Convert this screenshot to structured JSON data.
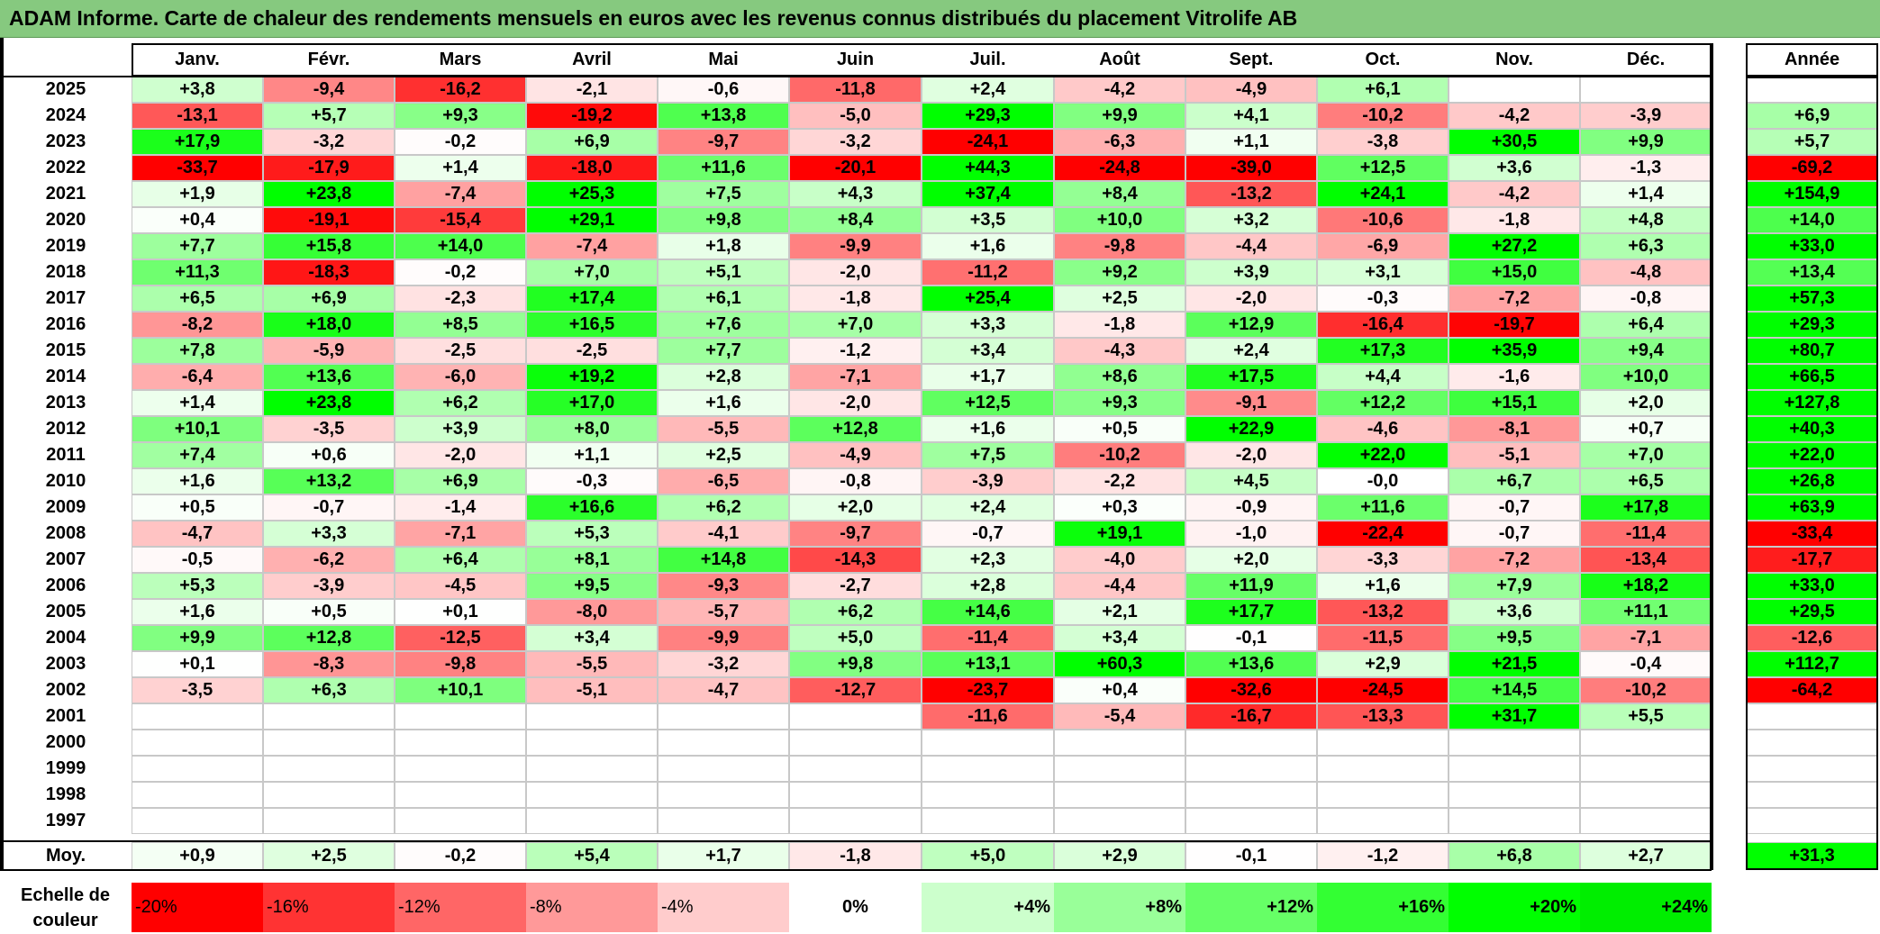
{
  "title": "ADAM Informe. Carte de chaleur des rendements mensuels en euros avec les revenus connus distribués du placement Vitrolife AB",
  "chart_data": {
    "type": "heatmap",
    "columns": [
      "Janv.",
      "Févr.",
      "Mars",
      "Avril",
      "Mai",
      "Juin",
      "Juil.",
      "Août",
      "Sept.",
      "Oct.",
      "Nov.",
      "Déc."
    ],
    "year_column": "Année",
    "rows": [
      {
        "label": "2025",
        "values": [
          3.8,
          -9.4,
          -16.2,
          -2.1,
          -0.6,
          -11.8,
          2.4,
          -4.2,
          -4.9,
          6.1,
          null,
          null
        ],
        "year": null
      },
      {
        "label": "2024",
        "values": [
          -13.1,
          5.7,
          9.3,
          -19.2,
          13.8,
          -5.0,
          29.3,
          9.9,
          4.1,
          -10.2,
          -4.2,
          -3.9
        ],
        "year": 6.9
      },
      {
        "label": "2023",
        "values": [
          17.9,
          -3.2,
          -0.2,
          6.9,
          -9.7,
          -3.2,
          -24.1,
          -6.3,
          1.1,
          -3.8,
          30.5,
          9.9
        ],
        "year": 5.7
      },
      {
        "label": "2022",
        "values": [
          -33.7,
          -17.9,
          1.4,
          -18.0,
          11.6,
          -20.1,
          44.3,
          -24.8,
          -39.0,
          12.5,
          3.6,
          -1.3
        ],
        "year": -69.2
      },
      {
        "label": "2021",
        "values": [
          1.9,
          23.8,
          -7.4,
          25.3,
          7.5,
          4.3,
          37.4,
          8.4,
          -13.2,
          24.1,
          -4.2,
          1.4
        ],
        "year": 154.9
      },
      {
        "label": "2020",
        "values": [
          0.4,
          -19.1,
          -15.4,
          29.1,
          9.8,
          8.4,
          3.5,
          10.0,
          3.2,
          -10.6,
          -1.8,
          4.8
        ],
        "year": 14.0
      },
      {
        "label": "2019",
        "values": [
          7.7,
          15.8,
          14.0,
          -7.4,
          1.8,
          -9.9,
          1.6,
          -9.8,
          -4.4,
          -6.9,
          27.2,
          6.3
        ],
        "year": 33.0
      },
      {
        "label": "2018",
        "values": [
          11.3,
          -18.3,
          -0.2,
          7.0,
          5.1,
          -2.0,
          -11.2,
          9.2,
          3.9,
          3.1,
          15.0,
          -4.8
        ],
        "year": 13.4
      },
      {
        "label": "2017",
        "values": [
          6.5,
          6.9,
          -2.3,
          17.4,
          6.1,
          -1.8,
          25.4,
          2.5,
          -2.0,
          -0.3,
          -7.2,
          -0.8
        ],
        "year": 57.3
      },
      {
        "label": "2016",
        "values": [
          -8.2,
          18.0,
          8.5,
          16.5,
          7.6,
          7.0,
          3.3,
          -1.8,
          12.9,
          -16.4,
          -19.7,
          6.4
        ],
        "year": 29.3
      },
      {
        "label": "2015",
        "values": [
          7.8,
          -5.9,
          -2.5,
          -2.5,
          7.7,
          -1.2,
          3.4,
          -4.3,
          2.4,
          17.3,
          35.9,
          9.4
        ],
        "year": 80.7
      },
      {
        "label": "2014",
        "values": [
          -6.4,
          13.6,
          -6.0,
          19.2,
          2.8,
          -7.1,
          1.7,
          8.6,
          17.5,
          4.4,
          -1.6,
          10.0
        ],
        "year": 66.5
      },
      {
        "label": "2013",
        "values": [
          1.4,
          23.8,
          6.2,
          17.0,
          1.6,
          -2.0,
          12.5,
          9.3,
          -9.1,
          12.2,
          15.1,
          2.0
        ],
        "year": 127.8
      },
      {
        "label": "2012",
        "values": [
          10.1,
          -3.5,
          3.9,
          8.0,
          -5.5,
          12.8,
          1.6,
          0.5,
          22.9,
          -4.6,
          -8.1,
          0.7
        ],
        "year": 40.3
      },
      {
        "label": "2011",
        "values": [
          7.4,
          0.6,
          -2.0,
          1.1,
          2.5,
          -4.9,
          7.5,
          -10.2,
          -2.0,
          22.0,
          -5.1,
          7.0
        ],
        "year": 22.0
      },
      {
        "label": "2010",
        "values": [
          1.6,
          13.2,
          6.9,
          -0.3,
          -6.5,
          -0.8,
          -3.9,
          -2.2,
          4.5,
          -0.0,
          6.7,
          6.5
        ],
        "year": 26.8
      },
      {
        "label": "2009",
        "values": [
          0.5,
          -0.7,
          -1.4,
          16.6,
          6.2,
          2.0,
          2.4,
          0.3,
          -0.9,
          11.6,
          -0.7,
          17.8
        ],
        "year": 63.9
      },
      {
        "label": "2008",
        "values": [
          -4.7,
          3.3,
          -7.1,
          5.3,
          -4.1,
          -9.7,
          -0.7,
          19.1,
          -1.0,
          -22.4,
          -0.7,
          -11.4
        ],
        "year": -33.4
      },
      {
        "label": "2007",
        "values": [
          -0.5,
          -6.2,
          6.4,
          8.1,
          14.8,
          -14.3,
          2.3,
          -4.0,
          2.0,
          -3.3,
          -7.2,
          -13.4
        ],
        "year": -17.7
      },
      {
        "label": "2006",
        "values": [
          5.3,
          -3.9,
          -4.5,
          9.5,
          -9.3,
          -2.7,
          2.8,
          -4.4,
          11.9,
          1.6,
          7.9,
          18.2
        ],
        "year": 33.0
      },
      {
        "label": "2005",
        "values": [
          1.6,
          0.5,
          0.1,
          -8.0,
          -5.7,
          6.2,
          14.6,
          2.1,
          17.7,
          -13.2,
          3.6,
          11.1
        ],
        "year": 29.5
      },
      {
        "label": "2004",
        "values": [
          9.9,
          12.8,
          -12.5,
          3.4,
          -9.9,
          5.0,
          -11.4,
          3.4,
          -0.1,
          -11.5,
          9.5,
          -7.1
        ],
        "year": -12.6
      },
      {
        "label": "2003",
        "values": [
          0.1,
          -8.3,
          -9.8,
          -5.5,
          -3.2,
          9.8,
          13.1,
          60.3,
          13.6,
          2.9,
          21.5,
          -0.4
        ],
        "year": 112.7
      },
      {
        "label": "2002",
        "values": [
          -3.5,
          6.3,
          10.1,
          -5.1,
          -4.7,
          -12.7,
          -23.7,
          0.4,
          -32.6,
          -24.5,
          14.5,
          -10.2
        ],
        "year": -64.2
      },
      {
        "label": "2001",
        "values": [
          null,
          null,
          null,
          null,
          null,
          null,
          -11.6,
          -5.4,
          -16.7,
          -13.3,
          31.7,
          5.5
        ],
        "year": null
      },
      {
        "label": "2000",
        "values": [
          null,
          null,
          null,
          null,
          null,
          null,
          null,
          null,
          null,
          null,
          null,
          null
        ],
        "year": null
      },
      {
        "label": "1999",
        "values": [
          null,
          null,
          null,
          null,
          null,
          null,
          null,
          null,
          null,
          null,
          null,
          null
        ],
        "year": null
      },
      {
        "label": "1998",
        "values": [
          null,
          null,
          null,
          null,
          null,
          null,
          null,
          null,
          null,
          null,
          null,
          null
        ],
        "year": null
      },
      {
        "label": "1997",
        "values": [
          null,
          null,
          null,
          null,
          null,
          null,
          null,
          null,
          null,
          null,
          null,
          null
        ],
        "year": null
      }
    ],
    "average": {
      "label": "Moy.",
      "values": [
        0.9,
        2.5,
        -0.2,
        5.4,
        1.7,
        -1.8,
        5.0,
        2.9,
        -0.1,
        -1.2,
        6.8,
        2.7
      ],
      "year": 31.3
    },
    "scale": {
      "label_line1": "Echelle de",
      "label_line2": "couleur",
      "steps": [
        {
          "label": "-20%",
          "value": -20,
          "color": "#ff0000"
        },
        {
          "label": "-16%",
          "value": -16,
          "color": "#ff3333"
        },
        {
          "label": "-12%",
          "value": -12,
          "color": "#ff6666"
        },
        {
          "label": "-8%",
          "value": -8,
          "color": "#ff9999"
        },
        {
          "label": "-4%",
          "value": -4,
          "color": "#ffcccc"
        },
        {
          "label": "0%",
          "value": 0,
          "color": "#ffffff"
        },
        {
          "label": "+4%",
          "value": 4,
          "color": "#ccffcc"
        },
        {
          "label": "+8%",
          "value": 8,
          "color": "#99ff99"
        },
        {
          "label": "+12%",
          "value": 12,
          "color": "#66ff66"
        },
        {
          "label": "+16%",
          "value": 16,
          "color": "#33ff33"
        },
        {
          "label": "+20%",
          "value": 20,
          "color": "#00ff00"
        },
        {
          "label": "+24%",
          "value": 24,
          "color": "#00ee00"
        }
      ]
    }
  }
}
